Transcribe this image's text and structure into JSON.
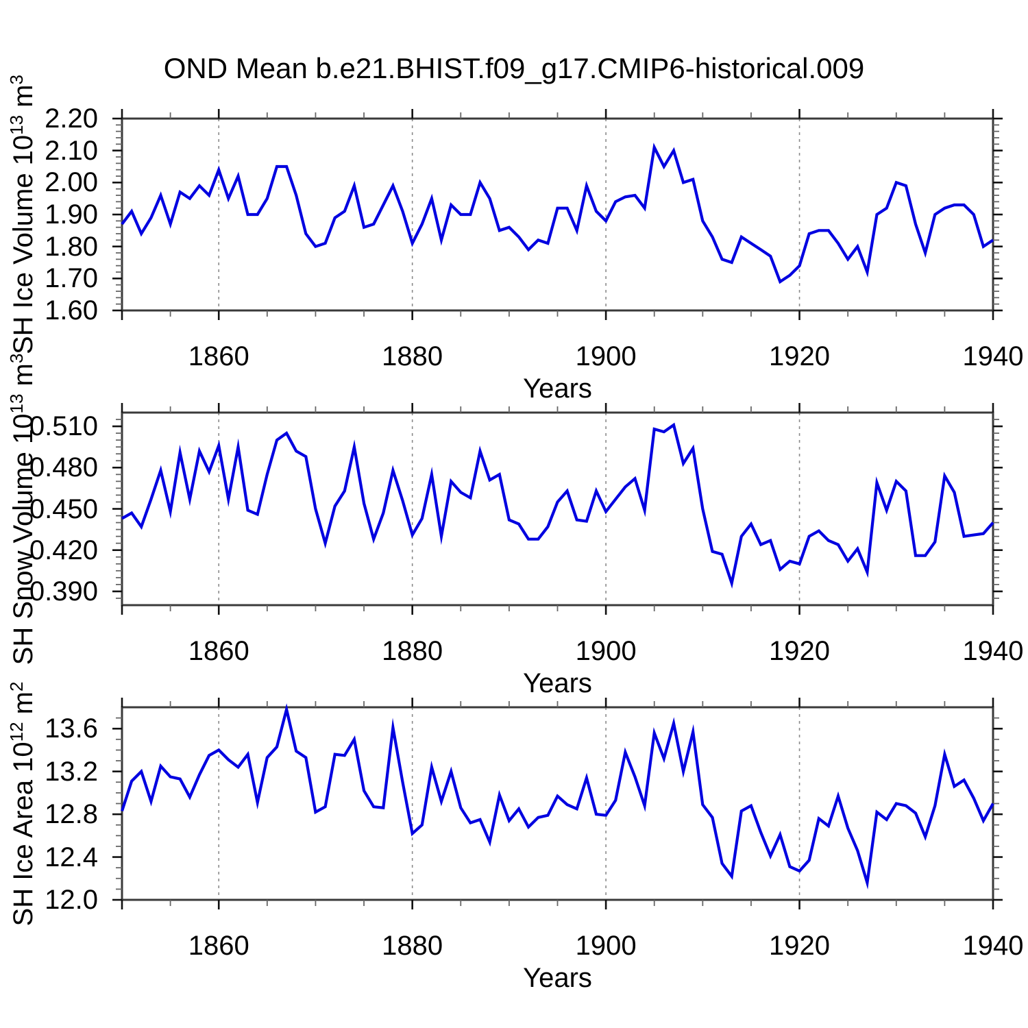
{
  "chart_data": {
    "type": "line",
    "title": "OND Mean b.e21.BHIST.f09_g17.CMIP6-historical.009",
    "x_label": "Years",
    "x_range": [
      1850,
      1940
    ],
    "x_labeled_ticks": [
      1860,
      1880,
      1900,
      1920,
      1940
    ],
    "x_major_ticks": [
      1850,
      1860,
      1880,
      1900,
      1920,
      1940
    ],
    "x_minor_step": 5,
    "gridline_years": [
      1860,
      1880,
      1900,
      1920
    ],
    "line_color": "#0000e0",
    "grid_on": true,
    "legend": "none",
    "years": [
      1850,
      1851,
      1852,
      1853,
      1854,
      1855,
      1856,
      1857,
      1858,
      1859,
      1860,
      1861,
      1862,
      1863,
      1864,
      1865,
      1866,
      1867,
      1868,
      1869,
      1870,
      1871,
      1872,
      1873,
      1874,
      1875,
      1876,
      1877,
      1878,
      1879,
      1880,
      1881,
      1882,
      1883,
      1884,
      1885,
      1886,
      1887,
      1888,
      1889,
      1890,
      1891,
      1892,
      1893,
      1894,
      1895,
      1896,
      1897,
      1898,
      1899,
      1900,
      1901,
      1902,
      1903,
      1904,
      1905,
      1906,
      1907,
      1908,
      1909,
      1910,
      1911,
      1912,
      1913,
      1914,
      1915,
      1916,
      1917,
      1918,
      1919,
      1920,
      1921,
      1922,
      1923,
      1924,
      1925,
      1926,
      1927,
      1928,
      1929,
      1930,
      1931,
      1932,
      1933,
      1934,
      1935,
      1936,
      1937,
      1938,
      1939,
      1940
    ],
    "panels": [
      {
        "name": "sh-ice-volume",
        "ylabel": {
          "base": "SH Ice Volume 10",
          "exp": "13",
          "unit": " m",
          "unit_exp": "3"
        },
        "y_range": [
          1.6,
          2.2
        ],
        "y_major_ticks": [
          1.6,
          1.7,
          1.8,
          1.9,
          2.0,
          2.1,
          2.2
        ],
        "y_tick_labels": [
          "1.60",
          "1.70",
          "1.80",
          "1.90",
          "2.00",
          "2.10",
          "2.20"
        ],
        "y_minor_step": 0.02,
        "values": [
          1.87,
          1.91,
          1.84,
          1.89,
          1.96,
          1.87,
          1.97,
          1.95,
          1.99,
          1.96,
          2.04,
          1.95,
          2.02,
          1.9,
          1.9,
          1.95,
          2.05,
          2.05,
          1.96,
          1.84,
          1.8,
          1.81,
          1.89,
          1.91,
          1.99,
          1.86,
          1.87,
          1.93,
          1.99,
          1.91,
          1.81,
          1.87,
          1.95,
          1.82,
          1.93,
          1.9,
          1.9,
          2.0,
          1.95,
          1.85,
          1.86,
          1.83,
          1.79,
          1.82,
          1.81,
          1.92,
          1.92,
          1.85,
          1.99,
          1.91,
          1.88,
          1.94,
          1.955,
          1.96,
          1.92,
          2.11,
          2.05,
          2.1,
          2.0,
          2.01,
          1.88,
          1.83,
          1.76,
          1.75,
          1.83,
          1.81,
          1.79,
          1.77,
          1.69,
          1.71,
          1.74,
          1.84,
          1.85,
          1.85,
          1.81,
          1.76,
          1.8,
          1.72,
          1.9,
          1.92,
          2.0,
          1.99,
          1.87,
          1.78,
          1.9,
          1.92,
          1.93,
          1.93,
          1.9,
          1.8,
          1.82
        ]
      },
      {
        "name": "sh-snow-volume",
        "ylabel": {
          "base": "SH Snow Volume 10",
          "exp": "13",
          "unit": " m",
          "unit_exp": "3"
        },
        "y_range": [
          0.38,
          0.52
        ],
        "y_major_ticks": [
          0.39,
          0.42,
          0.45,
          0.48,
          0.51
        ],
        "y_tick_labels": [
          "0.390",
          "0.420",
          "0.450",
          "0.480",
          "0.510"
        ],
        "y_minor_step": 0.005,
        "values": [
          0.443,
          0.447,
          0.437,
          0.457,
          0.478,
          0.448,
          0.491,
          0.457,
          0.492,
          0.477,
          0.496,
          0.457,
          0.495,
          0.449,
          0.446,
          0.475,
          0.5,
          0.505,
          0.492,
          0.488,
          0.45,
          0.425,
          0.452,
          0.463,
          0.495,
          0.454,
          0.428,
          0.447,
          0.478,
          0.456,
          0.431,
          0.443,
          0.475,
          0.43,
          0.47,
          0.462,
          0.458,
          0.492,
          0.471,
          0.475,
          0.442,
          0.439,
          0.428,
          0.428,
          0.437,
          0.455,
          0.463,
          0.442,
          0.441,
          0.463,
          0.448,
          0.457,
          0.466,
          0.472,
          0.449,
          0.508,
          0.506,
          0.511,
          0.483,
          0.494,
          0.45,
          0.419,
          0.417,
          0.396,
          0.43,
          0.439,
          0.424,
          0.427,
          0.406,
          0.412,
          0.41,
          0.43,
          0.434,
          0.427,
          0.424,
          0.412,
          0.421,
          0.404,
          0.469,
          0.449,
          0.47,
          0.463,
          0.416,
          0.416,
          0.426,
          0.474,
          0.462,
          0.43,
          0.431,
          0.432,
          0.44
        ]
      },
      {
        "name": "sh-ice-area",
        "ylabel": {
          "base": "SH Ice Area 10",
          "exp": "12",
          "unit": " m",
          "unit_exp": "2"
        },
        "y_range": [
          12.0,
          13.8
        ],
        "y_major_ticks": [
          12.0,
          12.4,
          12.8,
          13.2,
          13.6
        ],
        "y_tick_labels": [
          "12.0",
          "12.4",
          "12.8",
          "13.2",
          "13.6"
        ],
        "y_minor_step": 0.1,
        "values": [
          12.83,
          13.11,
          13.2,
          12.92,
          13.25,
          13.15,
          13.13,
          12.96,
          13.17,
          13.35,
          13.4,
          13.31,
          13.24,
          13.36,
          12.91,
          13.33,
          13.43,
          13.78,
          13.39,
          13.33,
          12.82,
          12.87,
          13.36,
          13.35,
          13.5,
          13.02,
          12.87,
          12.86,
          13.61,
          13.1,
          12.62,
          12.7,
          13.24,
          12.92,
          13.2,
          12.86,
          12.72,
          12.75,
          12.54,
          12.98,
          12.74,
          12.85,
          12.68,
          12.77,
          12.79,
          12.97,
          12.89,
          12.85,
          13.14,
          12.8,
          12.79,
          12.93,
          13.38,
          13.15,
          12.88,
          13.56,
          13.32,
          13.65,
          13.2,
          13.57,
          12.89,
          12.77,
          12.34,
          12.22,
          12.83,
          12.88,
          12.63,
          12.41,
          12.61,
          12.31,
          12.27,
          12.37,
          12.76,
          12.69,
          12.97,
          12.67,
          12.46,
          12.16,
          12.82,
          12.75,
          12.9,
          12.88,
          12.81,
          12.59,
          12.88,
          13.36,
          13.06,
          13.12,
          12.95,
          12.74,
          12.9
        ]
      }
    ]
  }
}
